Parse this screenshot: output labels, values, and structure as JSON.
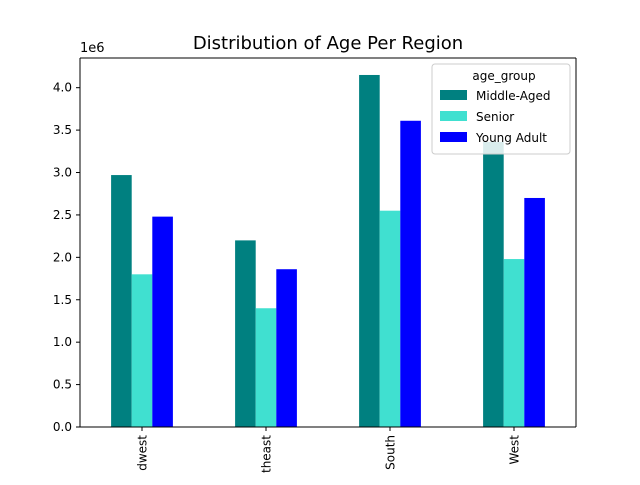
{
  "chart_data": {
    "type": "bar",
    "title": "Distribution of Age Per Region",
    "xlabel": "",
    "ylabel": "",
    "y_offset_label": "1e6",
    "y_scale_factor": 1000000,
    "ylim": [
      0,
      4.35
    ],
    "yticks": [
      "0.0",
      "0.5",
      "1.0",
      "1.5",
      "2.0",
      "2.5",
      "3.0",
      "3.5",
      "4.0"
    ],
    "categories": [
      "Midwest",
      "Northeast",
      "South",
      "West"
    ],
    "category_labels_visible": [
      "dwest",
      "theast",
      "South",
      "West"
    ],
    "legend_title": "age_group",
    "legend_position": "upper right",
    "grid": false,
    "series": [
      {
        "name": "Middle-Aged",
        "color": "#008080",
        "values": [
          2.97,
          2.2,
          4.15,
          3.36
        ]
      },
      {
        "name": "Senior",
        "color": "#40e0d0",
        "values": [
          1.8,
          1.4,
          2.55,
          1.98
        ]
      },
      {
        "name": "Young Adult",
        "color": "#0000ff",
        "values": [
          2.48,
          1.86,
          3.61,
          2.7
        ]
      }
    ]
  }
}
